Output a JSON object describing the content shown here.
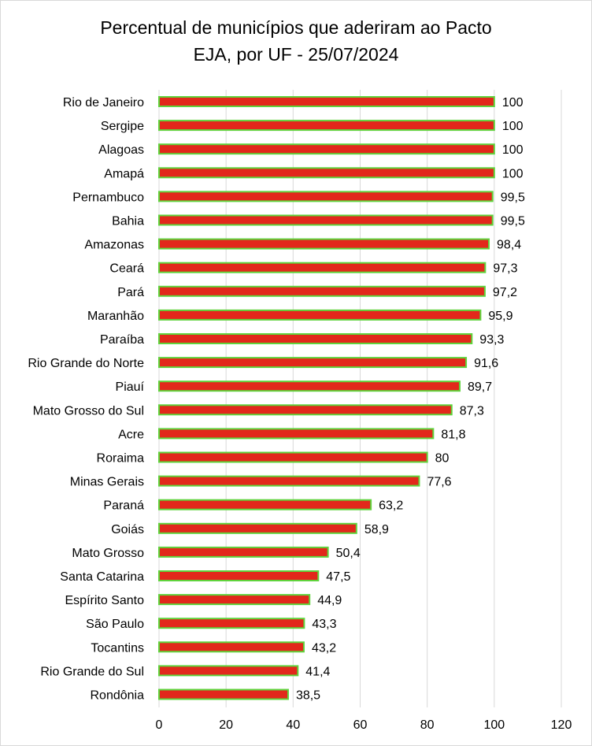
{
  "chart_data": {
    "type": "bar",
    "orientation": "horizontal",
    "title": [
      "Percentual de municípios que aderiram ao Pacto",
      "EJA, por UF - 25/07/2024"
    ],
    "xlabel": "",
    "ylabel": "",
    "xlim": [
      0,
      120
    ],
    "x_ticks": [
      0,
      20,
      40,
      60,
      80,
      100,
      120
    ],
    "grid": "vertical",
    "legend": "none",
    "bar_color": "#e2281b",
    "bar_border_color": "#5fd33c",
    "categories": [
      "Rio de Janeiro",
      "Sergipe",
      "Alagoas",
      "Amapá",
      "Pernambuco",
      "Bahia",
      "Amazonas",
      "Ceará",
      "Pará",
      "Maranhão",
      "Paraíba",
      "Rio Grande do Norte",
      "Piauí",
      "Mato Grosso do Sul",
      "Acre",
      "Roraima",
      "Minas Gerais",
      "Paraná",
      "Goiás",
      "Mato Grosso",
      "Santa Catarina",
      "Espírito Santo",
      "São Paulo",
      "Tocantins",
      "Rio Grande do Sul",
      "Rondônia"
    ],
    "values": [
      100,
      100,
      100,
      100,
      99.5,
      99.5,
      98.4,
      97.3,
      97.2,
      95.9,
      93.3,
      91.6,
      89.7,
      87.3,
      81.8,
      80,
      77.6,
      63.2,
      58.9,
      50.4,
      47.5,
      44.9,
      43.3,
      43.2,
      41.4,
      38.5
    ],
    "value_labels": [
      "100",
      "100",
      "100",
      "100",
      "99,5",
      "99,5",
      "98,4",
      "97,3",
      "97,2",
      "95,9",
      "93,3",
      "91,6",
      "89,7",
      "87,3",
      "81,8",
      "80",
      "77,6",
      "63,2",
      "58,9",
      "50,4",
      "47,5",
      "44,9",
      "43,3",
      "43,2",
      "41,4",
      "38,5"
    ]
  }
}
